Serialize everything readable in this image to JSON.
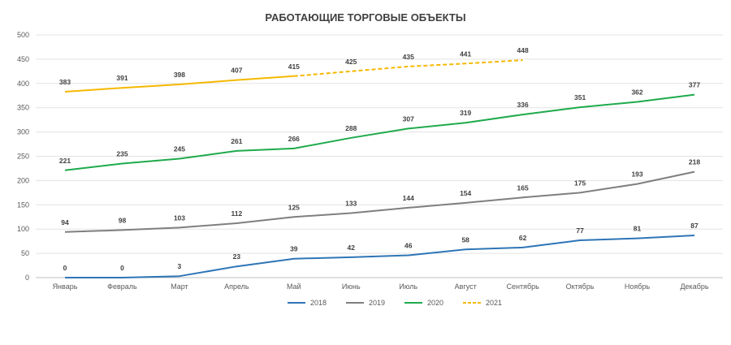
{
  "chart_data": {
    "type": "line",
    "title": "РАБОТАЮЩИЕ ТОРГОВЫЕ ОБЪЕКТЫ",
    "categories": [
      "Январь",
      "Февраль",
      "Март",
      "Апрель",
      "Май",
      "Июнь",
      "Июль",
      "Август",
      "Сентябрь",
      "Октябрь",
      "Ноябрь",
      "Декабрь"
    ],
    "ylim": [
      0,
      500
    ],
    "yticks": [
      0,
      50,
      100,
      150,
      200,
      250,
      300,
      350,
      400,
      450,
      500
    ],
    "grid": true,
    "legend_position": "bottom",
    "series": [
      {
        "name": "2018",
        "color": "#2E75B6",
        "dashed_from": null,
        "values": [
          0,
          0,
          3,
          23,
          39,
          42,
          46,
          58,
          62,
          77,
          81,
          87
        ]
      },
      {
        "name": "2019",
        "color": "#7F7F7F",
        "dashed_from": null,
        "values": [
          94,
          98,
          103,
          112,
          125,
          133,
          144,
          154,
          165,
          175,
          193,
          218
        ]
      },
      {
        "name": "2020",
        "color": "#1FAA4C",
        "dashed_from": null,
        "values": [
          221,
          235,
          245,
          261,
          266,
          288,
          307,
          319,
          336,
          351,
          362,
          377
        ]
      },
      {
        "name": "2021",
        "color": "#F5B800",
        "dashed_from": 4,
        "values": [
          383,
          391,
          398,
          407,
          415,
          425,
          435,
          441,
          448,
          null,
          null,
          null
        ]
      }
    ]
  }
}
